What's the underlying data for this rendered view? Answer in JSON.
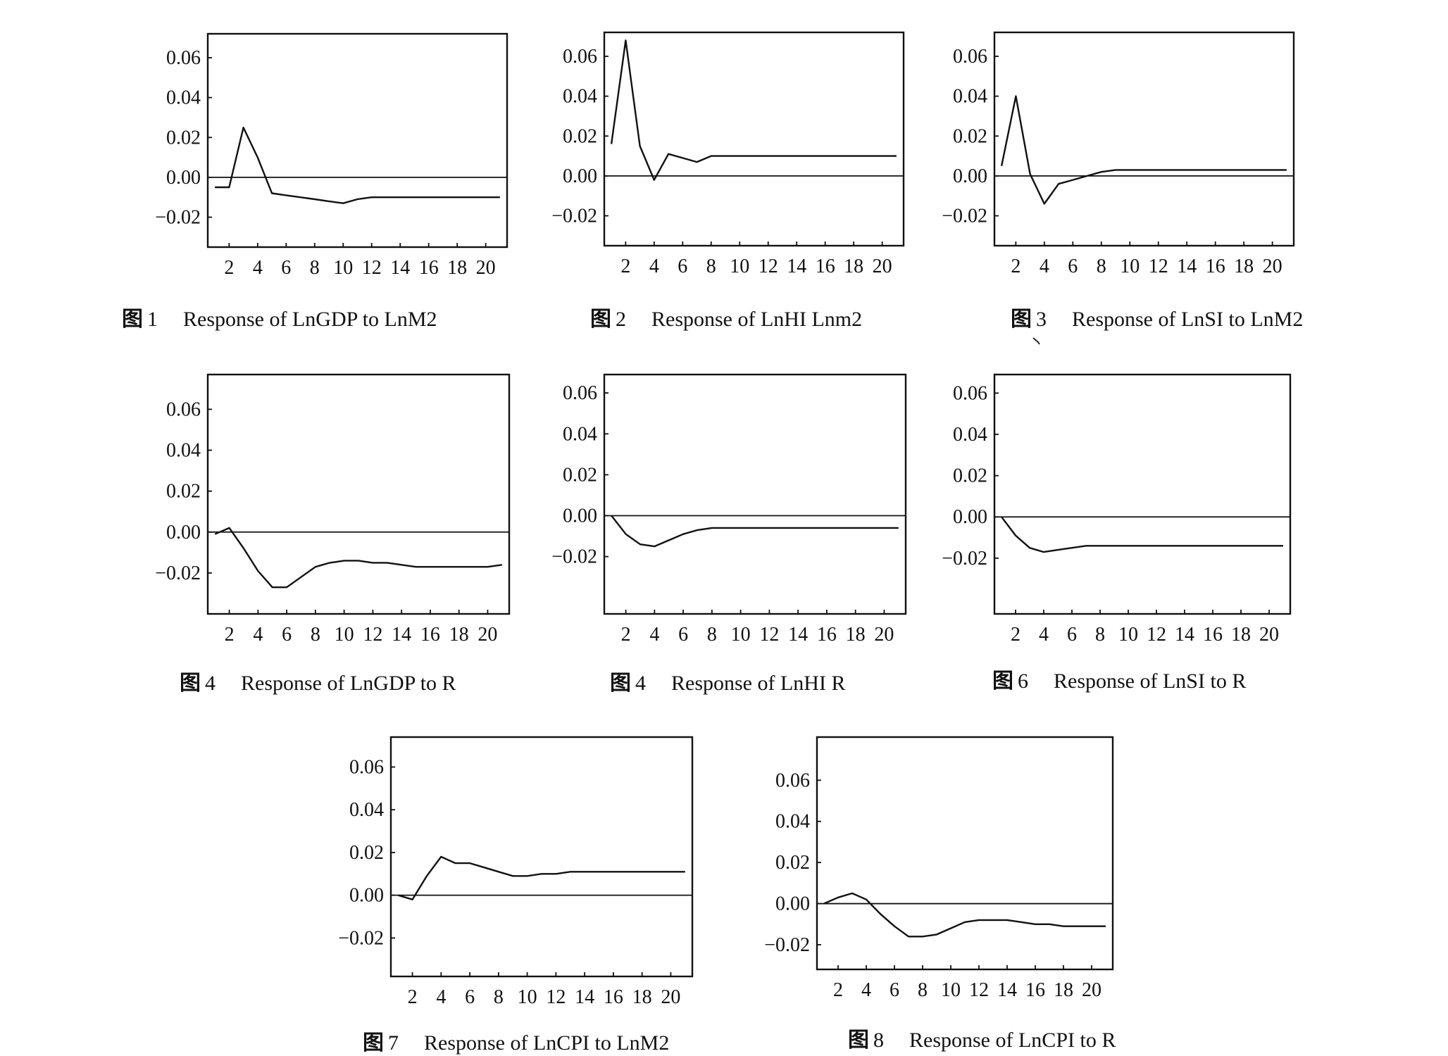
{
  "chart_data": [
    {
      "type": "line",
      "figure_label": "图",
      "figure_number": "1",
      "title": "Response of LnGDP to LnM2",
      "x": [
        1,
        2,
        3,
        4,
        5,
        6,
        7,
        8,
        9,
        10,
        11,
        12,
        13,
        14,
        15,
        16,
        17,
        18,
        19,
        20,
        21
      ],
      "values": [
        -0.005,
        -0.005,
        0.025,
        0.01,
        -0.008,
        -0.009,
        -0.01,
        -0.011,
        -0.012,
        -0.013,
        -0.011,
        -0.01,
        -0.01,
        -0.01,
        -0.01,
        -0.01,
        -0.01,
        -0.01,
        -0.01,
        -0.01,
        -0.01
      ],
      "baseline": 0.0,
      "xlim": [
        0.5,
        21.5
      ],
      "ylim": [
        -0.035,
        0.072
      ],
      "yticks": [
        0.06,
        0.04,
        0.02,
        0.0,
        -0.02
      ],
      "ytick_labels": [
        "0.06",
        "0.04",
        "0.02",
        "0.00",
        "−0.02"
      ],
      "xticks": [
        2,
        4,
        6,
        8,
        10,
        12,
        14,
        16,
        18,
        20
      ],
      "xtick_labels": [
        "2",
        "4",
        "6",
        "8",
        "10",
        "12",
        "14",
        "16",
        "18",
        "20"
      ],
      "grid": false
    },
    {
      "type": "line",
      "figure_label": "图",
      "figure_number": "2",
      "title": "Response of LnHI Lnm2",
      "x": [
        1,
        2,
        3,
        4,
        5,
        6,
        7,
        8,
        9,
        10,
        11,
        12,
        13,
        14,
        15,
        16,
        17,
        18,
        19,
        20,
        21
      ],
      "values": [
        0.016,
        0.068,
        0.015,
        -0.002,
        0.011,
        0.009,
        0.007,
        0.01,
        0.01,
        0.01,
        0.01,
        0.01,
        0.01,
        0.01,
        0.01,
        0.01,
        0.01,
        0.01,
        0.01,
        0.01,
        0.01
      ],
      "baseline": 0.0,
      "xlim": [
        0.5,
        21.5
      ],
      "ylim": [
        -0.035,
        0.072
      ],
      "yticks": [
        0.06,
        0.04,
        0.02,
        0.0,
        -0.02
      ],
      "ytick_labels": [
        "0.06",
        "0.04",
        "0.02",
        "0.00",
        "−0.02"
      ],
      "xticks": [
        2,
        4,
        6,
        8,
        10,
        12,
        14,
        16,
        18,
        20
      ],
      "xtick_labels": [
        "2",
        "4",
        "6",
        "8",
        "10",
        "12",
        "14",
        "16",
        "18",
        "20"
      ],
      "grid": false
    },
    {
      "type": "line",
      "figure_label": "图",
      "figure_number": "3",
      "title": "Response of LnSI to LnM2",
      "x": [
        1,
        2,
        3,
        4,
        5,
        6,
        7,
        8,
        9,
        10,
        11,
        12,
        13,
        14,
        15,
        16,
        17,
        18,
        19,
        20,
        21
      ],
      "values": [
        0.005,
        0.04,
        0.001,
        -0.014,
        -0.004,
        -0.002,
        0.0,
        0.002,
        0.003,
        0.003,
        0.003,
        0.003,
        0.003,
        0.003,
        0.003,
        0.003,
        0.003,
        0.003,
        0.003,
        0.003,
        0.003
      ],
      "baseline": 0.0,
      "xlim": [
        0.5,
        21.5
      ],
      "ylim": [
        -0.035,
        0.072
      ],
      "yticks": [
        0.06,
        0.04,
        0.02,
        0.0,
        -0.02
      ],
      "ytick_labels": [
        "0.06",
        "0.04",
        "0.02",
        "0.00",
        "−0.02"
      ],
      "xticks": [
        2,
        4,
        6,
        8,
        10,
        12,
        14,
        16,
        18,
        20
      ],
      "xtick_labels": [
        "2",
        "4",
        "6",
        "8",
        "10",
        "12",
        "14",
        "16",
        "18",
        "20"
      ],
      "grid": false
    },
    {
      "type": "line",
      "figure_label": "图",
      "figure_number": "4",
      "title": "Response of LnGDP to R",
      "x": [
        1,
        2,
        3,
        4,
        5,
        6,
        7,
        8,
        9,
        10,
        11,
        12,
        13,
        14,
        15,
        16,
        17,
        18,
        19,
        20,
        21
      ],
      "values": [
        -0.001,
        0.002,
        -0.008,
        -0.019,
        -0.027,
        -0.027,
        -0.022,
        -0.017,
        -0.015,
        -0.014,
        -0.014,
        -0.015,
        -0.015,
        -0.016,
        -0.017,
        -0.017,
        -0.017,
        -0.017,
        -0.017,
        -0.017,
        -0.016
      ],
      "baseline": 0.0,
      "xlim": [
        0.5,
        21.5
      ],
      "ylim": [
        -0.04,
        0.077
      ],
      "yticks": [
        0.06,
        0.04,
        0.02,
        0.0,
        -0.02
      ],
      "ytick_labels": [
        "0.06",
        "0.04",
        "0.02",
        "0.00",
        "−0.02"
      ],
      "xticks": [
        2,
        4,
        6,
        8,
        10,
        12,
        14,
        16,
        18,
        20
      ],
      "xtick_labels": [
        "2",
        "4",
        "6",
        "8",
        "10",
        "12",
        "14",
        "16",
        "18",
        "20"
      ],
      "grid": false
    },
    {
      "type": "line",
      "figure_label": "图",
      "figure_number": "4",
      "title": "Response of LnHI R",
      "x": [
        1,
        2,
        3,
        4,
        5,
        6,
        7,
        8,
        9,
        10,
        11,
        12,
        13,
        14,
        15,
        16,
        17,
        18,
        19,
        20,
        21
      ],
      "values": [
        0.0,
        -0.009,
        -0.014,
        -0.015,
        -0.012,
        -0.009,
        -0.007,
        -0.006,
        -0.006,
        -0.006,
        -0.006,
        -0.006,
        -0.006,
        -0.006,
        -0.006,
        -0.006,
        -0.006,
        -0.006,
        -0.006,
        -0.006,
        -0.006
      ],
      "baseline": 0.0,
      "xlim": [
        0.5,
        21.5
      ],
      "ylim": [
        -0.048,
        0.069
      ],
      "yticks": [
        0.06,
        0.04,
        0.02,
        0.0,
        -0.02
      ],
      "ytick_labels": [
        "0.06",
        "0.04",
        "0.02",
        "0.00",
        "−0.02"
      ],
      "xticks": [
        2,
        4,
        6,
        8,
        10,
        12,
        14,
        16,
        18,
        20
      ],
      "xtick_labels": [
        "2",
        "4",
        "6",
        "8",
        "10",
        "12",
        "14",
        "16",
        "18",
        "20"
      ],
      "grid": false
    },
    {
      "type": "line",
      "figure_label": "图",
      "figure_number": "6",
      "title": "Response of LnSI to R",
      "x": [
        1,
        2,
        3,
        4,
        5,
        6,
        7,
        8,
        9,
        10,
        11,
        12,
        13,
        14,
        15,
        16,
        17,
        18,
        19,
        20,
        21
      ],
      "values": [
        0.0,
        -0.009,
        -0.015,
        -0.017,
        -0.016,
        -0.015,
        -0.014,
        -0.014,
        -0.014,
        -0.014,
        -0.014,
        -0.014,
        -0.014,
        -0.014,
        -0.014,
        -0.014,
        -0.014,
        -0.014,
        -0.014,
        -0.014,
        -0.014
      ],
      "baseline": 0.0,
      "xlim": [
        0.5,
        21.5
      ],
      "ylim": [
        -0.047,
        0.069
      ],
      "yticks": [
        0.06,
        0.04,
        0.02,
        0.0,
        -0.02
      ],
      "ytick_labels": [
        "0.06",
        "0.04",
        "0.02",
        "0.00",
        "−0.02"
      ],
      "xticks": [
        2,
        4,
        6,
        8,
        10,
        12,
        14,
        16,
        18,
        20
      ],
      "xtick_labels": [
        "2",
        "4",
        "6",
        "8",
        "10",
        "12",
        "14",
        "16",
        "18",
        "20"
      ],
      "grid": false
    },
    {
      "type": "line",
      "figure_label": "图",
      "figure_number": "7",
      "title": "Response of LnCPI to LnM2",
      "x": [
        1,
        2,
        3,
        4,
        5,
        6,
        7,
        8,
        9,
        10,
        11,
        12,
        13,
        14,
        15,
        16,
        17,
        18,
        19,
        20,
        21
      ],
      "values": [
        0.0,
        -0.002,
        0.009,
        0.018,
        0.015,
        0.015,
        0.013,
        0.011,
        0.009,
        0.009,
        0.01,
        0.01,
        0.011,
        0.011,
        0.011,
        0.011,
        0.011,
        0.011,
        0.011,
        0.011,
        0.011
      ],
      "baseline": 0.0,
      "xlim": [
        0.5,
        21.5
      ],
      "ylim": [
        -0.038,
        0.074
      ],
      "yticks": [
        0.06,
        0.04,
        0.02,
        0.0,
        -0.02
      ],
      "ytick_labels": [
        "0.06",
        "0.04",
        "0.02",
        "0.00",
        "−0.02"
      ],
      "xticks": [
        2,
        4,
        6,
        8,
        10,
        12,
        14,
        16,
        18,
        20
      ],
      "xtick_labels": [
        "2",
        "4",
        "6",
        "8",
        "10",
        "12",
        "14",
        "16",
        "18",
        "20"
      ],
      "grid": false
    },
    {
      "type": "line",
      "figure_label": "图",
      "figure_number": "8",
      "title": "Response of LnCPI to R",
      "x": [
        1,
        2,
        3,
        4,
        5,
        6,
        7,
        8,
        9,
        10,
        11,
        12,
        13,
        14,
        15,
        16,
        17,
        18,
        19,
        20,
        21
      ],
      "values": [
        0.0,
        0.003,
        0.005,
        0.002,
        -0.005,
        -0.011,
        -0.016,
        -0.016,
        -0.015,
        -0.012,
        -0.009,
        -0.008,
        -0.008,
        -0.008,
        -0.009,
        -0.01,
        -0.01,
        -0.011,
        -0.011,
        -0.011,
        -0.011
      ],
      "baseline": 0.0,
      "xlim": [
        0.5,
        21.5
      ],
      "ylim": [
        -0.032,
        0.081
      ],
      "yticks": [
        0.06,
        0.04,
        0.02,
        0.0,
        -0.02
      ],
      "ytick_labels": [
        "0.06",
        "0.04",
        "0.02",
        "0.00",
        "−0.02"
      ],
      "xticks": [
        2,
        4,
        6,
        8,
        10,
        12,
        14,
        16,
        18,
        20
      ],
      "xtick_labels": [
        "2",
        "4",
        "6",
        "8",
        "10",
        "12",
        "14",
        "16",
        "18",
        "20"
      ],
      "grid": false
    }
  ]
}
